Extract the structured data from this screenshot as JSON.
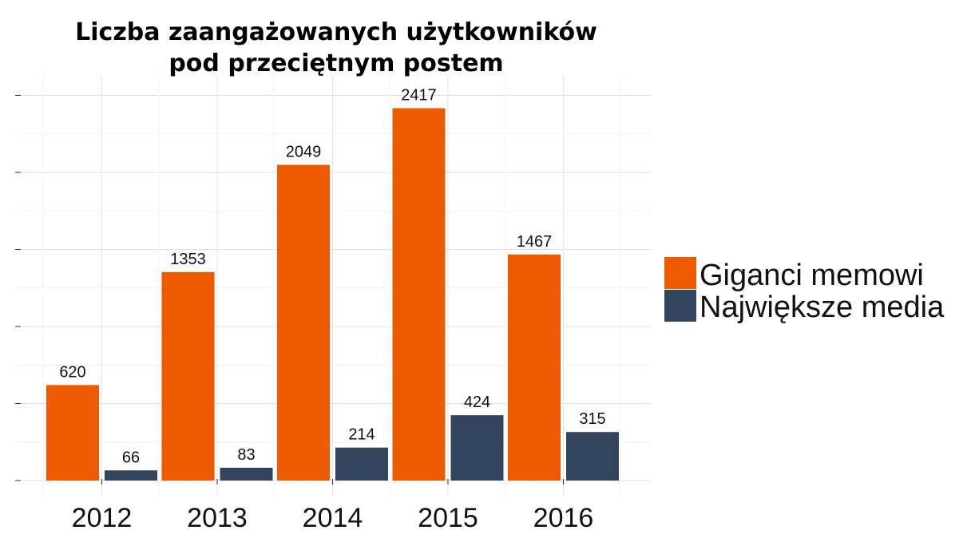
{
  "chart_data": {
    "type": "bar",
    "title_lines": [
      "Liczba zaangażowanych użytkowników",
      "pod przeciętnym postem"
    ],
    "categories": [
      "2012",
      "2013",
      "2014",
      "2015",
      "2016"
    ],
    "series": [
      {
        "name": "Giganci memowi",
        "color": "#ee5a00",
        "values": [
          620,
          1353,
          2049,
          2417,
          1467
        ]
      },
      {
        "name": "Największe media",
        "color": "#33455e",
        "values": [
          66,
          83,
          214,
          424,
          315
        ]
      }
    ],
    "ylim": [
      0,
      2500
    ],
    "y_major_ticks": [
      0,
      500,
      1000,
      1500,
      2000,
      2500
    ],
    "grid": true,
    "legend_position": "right"
  }
}
